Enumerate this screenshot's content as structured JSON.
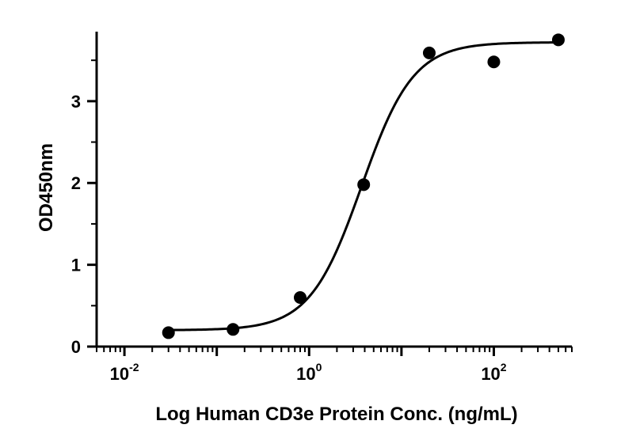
{
  "chart_data": {
    "type": "scatter",
    "title": "",
    "xlabel": "Log Human CD3e Protein Conc. (ng/mL)",
    "ylabel": "OD450nm",
    "x_scale": "log10",
    "xlim": [
      0.005,
      700
    ],
    "ylim": [
      0,
      3.85
    ],
    "grid": false,
    "legend": "none",
    "x_ticks": [
      {
        "base": "10",
        "exponent": "-2",
        "value": 0.01
      },
      {
        "base": "10",
        "exponent": "0",
        "value": 1
      },
      {
        "base": "10",
        "exponent": "2",
        "value": 100
      }
    ],
    "y_ticks": [
      {
        "label": "0",
        "value": 0
      },
      {
        "label": "1",
        "value": 1
      },
      {
        "label": "2",
        "value": 2
      },
      {
        "label": "3",
        "value": 3
      }
    ],
    "points": [
      {
        "x": 0.03,
        "y": 0.17
      },
      {
        "x": 0.15,
        "y": 0.21
      },
      {
        "x": 0.8,
        "y": 0.6
      },
      {
        "x": 3.9,
        "y": 1.98
      },
      {
        "x": 20,
        "y": 3.59
      },
      {
        "x": 100,
        "y": 3.48
      },
      {
        "x": 500,
        "y": 3.75
      }
    ],
    "fit": {
      "model": "4PL",
      "bottom": 0.2,
      "top": 3.72,
      "ec50": 3.7,
      "hill": 1.55
    },
    "colors": {
      "points": "#000000",
      "curve": "#000000",
      "axes": "#000000"
    }
  }
}
